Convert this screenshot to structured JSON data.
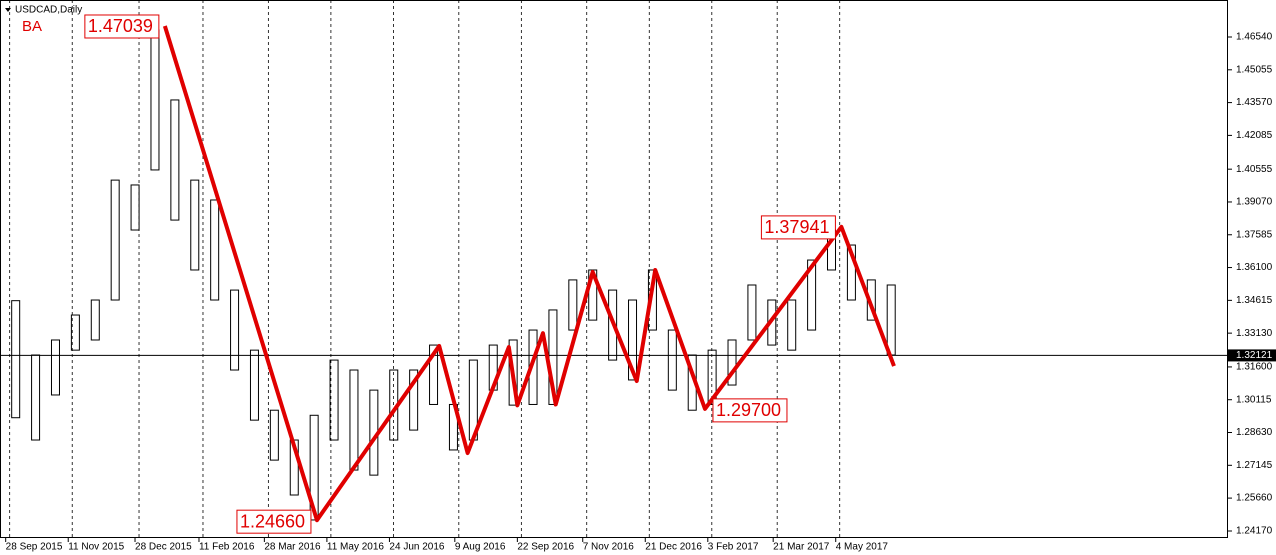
{
  "chart_data": {
    "type": "hlc",
    "title": "USDCAD,Daily",
    "color": "#000000",
    "x": [
      "2015-09-28",
      "2015-10-12",
      "2015-10-26",
      "2015-11-09",
      "2015-11-23",
      "2015-12-07",
      "2015-12-21",
      "2016-01-04",
      "2016-01-18",
      "2016-02-01",
      "2016-02-15",
      "2016-02-29",
      "2016-03-14",
      "2016-03-28",
      "2016-04-11",
      "2016-04-25",
      "2016-05-09",
      "2016-05-23",
      "2016-06-06",
      "2016-06-20",
      "2016-07-04",
      "2016-07-18",
      "2016-08-01",
      "2016-08-15",
      "2016-08-29",
      "2016-09-12",
      "2016-09-26",
      "2016-10-10",
      "2016-10-24",
      "2016-11-07",
      "2016-11-21",
      "2016-12-05",
      "2016-12-19",
      "2017-01-02",
      "2017-01-16",
      "2017-01-30",
      "2017-02-13",
      "2017-02-27",
      "2017-03-13",
      "2017-03-27",
      "2017-04-10",
      "2017-04-24",
      "2017-05-08",
      "2017-05-22",
      "2017-06-05"
    ],
    "high": [
      1.346,
      1.3214,
      1.3282,
      1.3395,
      1.3463,
      1.4006,
      1.3984,
      1.4686,
      1.4369,
      1.4006,
      1.3916,
      1.3508,
      1.3236,
      1.2964,
      1.2829,
      1.2941,
      1.3191,
      1.3146,
      1.3055,
      1.3146,
      1.3146,
      1.3259,
      1.299,
      1.3191,
      1.3259,
      1.3282,
      1.3327,
      1.3418,
      1.3554,
      1.3599,
      1.3508,
      1.3463,
      1.3599,
      1.3327,
      1.3214,
      1.3236,
      1.3282,
      1.3531,
      1.3463,
      1.3463,
      1.3644,
      1.378,
      1.3712,
      1.3554,
      1.3531
    ],
    "low": [
      1.293,
      1.2829,
      1.3033,
      1.3236,
      1.3282,
      1.3463,
      1.378,
      1.4052,
      1.3825,
      1.3599,
      1.3463,
      1.3146,
      1.2919,
      1.2738,
      1.258,
      1.2467,
      1.2829,
      1.2693,
      1.267,
      1.2829,
      1.2874,
      1.299,
      1.2784,
      1.2829,
      1.3055,
      1.2987,
      1.299,
      1.299,
      1.3327,
      1.3372,
      1.3191,
      1.3101,
      1.3327,
      1.3055,
      1.2964,
      1.299,
      1.3078,
      1.3282,
      1.3259,
      1.3236,
      1.3327,
      1.3599,
      1.3463,
      1.3372,
      1.3214
    ],
    "zigzag": {
      "name": "BA",
      "color": "#e00000",
      "x": [
        "2016-01-18",
        "2016-05-04",
        "2016-07-29",
        "2016-08-18",
        "2016-09-16",
        "2016-09-22",
        "2016-10-10",
        "2016-10-19",
        "2016-11-14",
        "2016-12-15",
        "2016-12-28",
        "2017-02-01",
        "2017-05-08",
        "2017-06-14"
      ],
      "values": [
        1.47039,
        1.2466,
        1.3255,
        1.277,
        1.325,
        1.2986,
        1.3313,
        1.299,
        1.359,
        1.3096,
        1.3599,
        1.297,
        1.37941,
        1.3164
      ],
      "value_labels": [
        "1.47039",
        "1.24660",
        null,
        null,
        null,
        null,
        null,
        null,
        null,
        null,
        null,
        "1.29700",
        "1.37941",
        null
      ]
    },
    "current_price": 1.32121,
    "xlim": [
      "2015-09-24",
      "2018-02-04"
    ],
    "xticks": [
      {
        "value": "2015-09-28",
        "label": "28 Sep 2015"
      },
      {
        "value": "2015-11-11",
        "label": "11 Nov 2015"
      },
      {
        "value": "2015-12-28",
        "label": "28 Dec 2015"
      },
      {
        "value": "2016-02-11",
        "label": "11 Feb 2016"
      },
      {
        "value": "2016-03-28",
        "label": "28 Mar 2016"
      },
      {
        "value": "2016-05-11",
        "label": "11 May 2016"
      },
      {
        "value": "2016-06-24",
        "label": "24 Jun 2016"
      },
      {
        "value": "2016-08-09",
        "label": "9 Aug 2016"
      },
      {
        "value": "2016-09-22",
        "label": "22 Sep 2016"
      },
      {
        "value": "2016-11-07",
        "label": "7 Nov 2016"
      },
      {
        "value": "2016-12-21",
        "label": "21 Dec 2016"
      },
      {
        "value": "2017-02-03",
        "label": "3 Feb 2017"
      },
      {
        "value": "2017-03-21",
        "label": "21 Mar 2017"
      },
      {
        "value": "2017-05-04",
        "label": "4 May 2017"
      }
    ],
    "ylim": [
      1.23853,
      1.48216
    ],
    "yticks": [
      {
        "value": 1.4654,
        "label": "1.46540"
      },
      {
        "value": 1.45055,
        "label": "1.45055"
      },
      {
        "value": 1.4357,
        "label": "1.43570"
      },
      {
        "value": 1.42085,
        "label": "1.42085"
      },
      {
        "value": 1.40555,
        "label": "1.40555"
      },
      {
        "value": 1.3907,
        "label": "1.39070"
      },
      {
        "value": 1.37585,
        "label": "1.37585"
      },
      {
        "value": 1.361,
        "label": "1.36100"
      },
      {
        "value": 1.34615,
        "label": "1.34615"
      },
      {
        "value": 1.3313,
        "label": "1.33130"
      },
      {
        "value": 1.316,
        "label": "1.31600"
      },
      {
        "value": 1.30115,
        "label": "1.30115"
      },
      {
        "value": 1.2863,
        "label": "1.28630"
      },
      {
        "value": 1.27145,
        "label": "1.27145"
      },
      {
        "value": 1.2566,
        "label": "1.25660"
      },
      {
        "value": 1.2417,
        "label": "1.24170"
      }
    ]
  }
}
